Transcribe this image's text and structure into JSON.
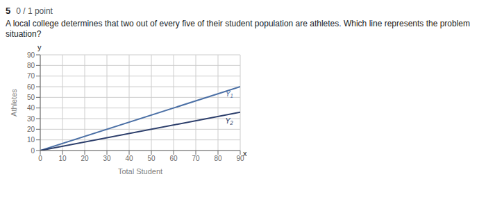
{
  "chart_data": {
    "type": "line",
    "title": "5",
    "subtitle": "0 / 1 point",
    "annotations": [
      "A local college determines that two out of every five of their student population are athletes.  Which line represents the problem situation?",
      "y",
      "x"
    ],
    "xlabel": "Total Student",
    "ylabel": "Athletes",
    "x": [
      0,
      90
    ],
    "series": [
      {
        "name": "Y₁",
        "color": "#4a6fa5",
        "values": [
          0,
          60.003
        ]
      },
      {
        "name": "Y₂",
        "color": "#2c3e6b",
        "values": [
          0,
          36
        ]
      }
    ],
    "xlim": [
      0,
      90
    ],
    "ylim": [
      0,
      90
    ],
    "xticks": [
      0,
      10,
      20,
      30,
      40,
      50,
      60,
      70,
      80,
      90
    ],
    "yticks": [
      0,
      10,
      20,
      30,
      40,
      50,
      60,
      70,
      80,
      90
    ],
    "grid": true
  }
}
